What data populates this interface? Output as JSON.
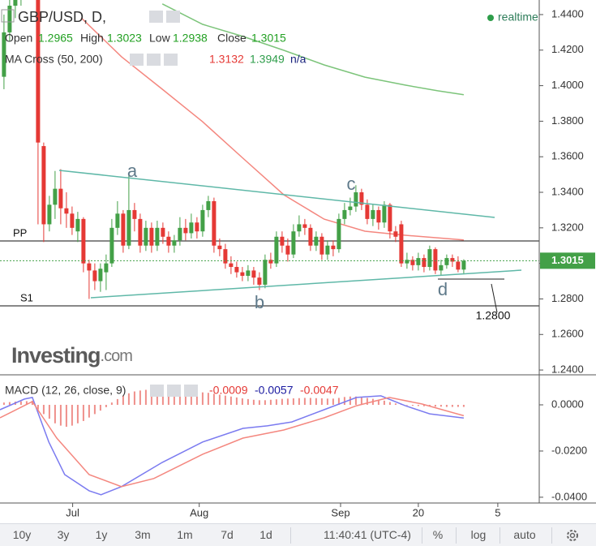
{
  "chart_data": [
    {
      "type": "candlestick",
      "symbol": "GBP/USD, D,",
      "status": "realtime",
      "ohlc_labels": [
        "Open",
        "High",
        "Low",
        "Close"
      ],
      "up_color": "#43a047",
      "down_color": "#e53935",
      "open": [
        1.405,
        1.43,
        1.445,
        1.45,
        1.465,
        1.475,
        1.488,
        1.366,
        1.322,
        1.333,
        1.342,
        1.331,
        1.328,
        1.318,
        1.325,
        1.3,
        1.296,
        1.29,
        1.295,
        1.3,
        1.32,
        1.328,
        1.31,
        1.33,
        1.325,
        1.31,
        1.32,
        1.31,
        1.32,
        1.315,
        1.31,
        1.313,
        1.32,
        1.317,
        1.323,
        1.318,
        1.33,
        1.335,
        1.31,
        1.308,
        1.3,
        1.298,
        1.295,
        1.293,
        1.296,
        1.292,
        1.288,
        1.302,
        1.3,
        1.315,
        1.31,
        1.305,
        1.318,
        1.322,
        1.32,
        1.31,
        1.315,
        1.305,
        1.31,
        1.308,
        1.325,
        1.33,
        1.332,
        1.34,
        1.333,
        1.325,
        1.33,
        1.323,
        1.333,
        1.318,
        1.322,
        1.3,
        1.302,
        1.299,
        1.303,
        1.298,
        1.308,
        1.296,
        1.299,
        1.303,
        1.301,
        1.2965
      ],
      "high": [
        1.44,
        1.452,
        1.46,
        1.472,
        1.48,
        1.502,
        1.502,
        1.368,
        1.338,
        1.352,
        1.353,
        1.34,
        1.332,
        1.329,
        1.326,
        1.302,
        1.3,
        1.3,
        1.305,
        1.325,
        1.335,
        1.33,
        1.35,
        1.334,
        1.328,
        1.324,
        1.323,
        1.324,
        1.323,
        1.318,
        1.316,
        1.326,
        1.325,
        1.328,
        1.326,
        1.333,
        1.338,
        1.337,
        1.314,
        1.311,
        1.304,
        1.301,
        1.298,
        1.299,
        1.298,
        1.295,
        1.305,
        1.306,
        1.318,
        1.318,
        1.314,
        1.322,
        1.327,
        1.325,
        1.322,
        1.318,
        1.317,
        1.313,
        1.313,
        1.328,
        1.334,
        1.337,
        1.344,
        1.342,
        1.336,
        1.333,
        1.332,
        1.335,
        1.334,
        1.321,
        1.324,
        1.306,
        1.304,
        1.306,
        1.305,
        1.31,
        1.309,
        1.302,
        1.305,
        1.305,
        1.304,
        1.3023
      ],
      "low": [
        1.398,
        1.425,
        1.438,
        1.445,
        1.458,
        1.47,
        1.322,
        1.312,
        1.318,
        1.325,
        1.322,
        1.32,
        1.316,
        1.312,
        1.295,
        1.28,
        1.285,
        1.284,
        1.285,
        1.298,
        1.316,
        1.306,
        1.308,
        1.318,
        1.306,
        1.307,
        1.306,
        1.307,
        1.311,
        1.306,
        1.306,
        1.31,
        1.313,
        1.314,
        1.314,
        1.315,
        1.326,
        1.306,
        1.304,
        1.297,
        1.294,
        1.292,
        1.29,
        1.29,
        1.288,
        1.285,
        1.286,
        1.297,
        1.298,
        1.306,
        1.301,
        1.303,
        1.315,
        1.316,
        1.307,
        1.307,
        1.302,
        1.302,
        1.304,
        1.306,
        1.322,
        1.327,
        1.329,
        1.33,
        1.322,
        1.321,
        1.319,
        1.32,
        1.314,
        1.312,
        1.298,
        1.297,
        1.296,
        1.296,
        1.295,
        1.296,
        1.294,
        1.293,
        1.297,
        1.298,
        1.295,
        1.2938
      ],
      "close": [
        1.43,
        1.445,
        1.45,
        1.465,
        1.475,
        1.488,
        1.368,
        1.322,
        1.333,
        1.342,
        1.331,
        1.328,
        1.32,
        1.325,
        1.3,
        1.296,
        1.29,
        1.297,
        1.3,
        1.32,
        1.328,
        1.31,
        1.33,
        1.325,
        1.31,
        1.32,
        1.31,
        1.32,
        1.315,
        1.31,
        1.313,
        1.32,
        1.317,
        1.323,
        1.318,
        1.33,
        1.335,
        1.31,
        1.308,
        1.3,
        1.298,
        1.295,
        1.293,
        1.296,
        1.292,
        1.288,
        1.302,
        1.3,
        1.315,
        1.31,
        1.305,
        1.318,
        1.322,
        1.32,
        1.31,
        1.315,
        1.305,
        1.31,
        1.308,
        1.325,
        1.33,
        1.332,
        1.34,
        1.333,
        1.325,
        1.33,
        1.323,
        1.333,
        1.318,
        1.315,
        1.3,
        1.302,
        1.299,
        1.303,
        1.298,
        1.308,
        1.296,
        1.299,
        1.303,
        1.301,
        1.2965,
        1.3015
      ],
      "moving_averages": {
        "label": "MA Cross (50, 200)",
        "status": "n/a",
        "series": [
          {
            "color": "#f4877f",
            "x": [
              13.6,
              20.7,
              27.9,
              35,
              42.1,
              49.3,
              56.4,
              63.6,
              70.7,
              81
            ],
            "values": [
              1.4382,
              1.4163,
              1.398,
              1.3797,
              1.3592,
              1.3386,
              1.3249,
              1.3181,
              1.3158,
              1.3132
            ]
          },
          {
            "color": "#7cc47a",
            "x": [
              27.9,
              35,
              42.1,
              49.3,
              56.4,
              63.6,
              70.7,
              76.4,
              81
            ],
            "values": [
              1.446,
              1.4345,
              1.4277,
              1.4199,
              1.4117,
              1.4048,
              1.4003,
              1.3971,
              1.3949
            ]
          }
        ]
      },
      "price_lines": [
        {
          "label": "PP",
          "value": 1.3126
        },
        {
          "label": "S1",
          "value": 1.2761
        }
      ],
      "annotations": [
        "a",
        "b",
        "c",
        "d",
        "1.2800"
      ],
      "logo": "Investing",
      "logo_suffix": ".com",
      "xlim": [
        -0.7,
        94.3
      ],
      "xticks": [
        {
          "value": 12.1,
          "label": "Jul"
        },
        {
          "value": 34.4,
          "label": "Aug"
        },
        {
          "value": 59.3,
          "label": "Sep"
        },
        {
          "value": 73,
          "label": "20"
        },
        {
          "value": 87,
          "label": "5"
        }
      ],
      "ylim": [
        1.2373,
        1.4482
      ],
      "yticks": [
        {
          "value": 1.44,
          "label": "1.4400"
        },
        {
          "value": 1.42,
          "label": "1.4200"
        },
        {
          "value": 1.4,
          "label": "1.4000"
        },
        {
          "value": 1.38,
          "label": "1.3800"
        },
        {
          "value": 1.36,
          "label": "1.3600"
        },
        {
          "value": 1.34,
          "label": "1.3400"
        },
        {
          "value": 1.32,
          "label": "1.3200"
        },
        {
          "value": 1.3,
          "label": "1.3000"
        },
        {
          "value": 1.28,
          "label": "1.2800"
        },
        {
          "value": 1.26,
          "label": "1.2600"
        },
        {
          "value": 1.24,
          "label": "1.2400"
        }
      ]
    },
    {
      "type": "macd",
      "label": "MACD (12, 26, close, 9)",
      "histogram": {
        "color": "#ef8f8a",
        "values": [
          0.001,
          0.0012,
          0.0014,
          0.0015,
          0.0016,
          0.0018,
          -0.002,
          -0.004,
          -0.006,
          -0.008,
          -0.009,
          -0.0095,
          -0.009,
          -0.008,
          -0.007,
          -0.0055,
          -0.004,
          -0.0025,
          -0.001,
          0.001,
          0.0025,
          0.004,
          0.005,
          0.0058,
          0.0062,
          0.0065,
          0.0066,
          0.0066,
          0.0064,
          0.0062,
          0.006,
          0.0058,
          0.0056,
          0.0055,
          0.0055,
          0.0054,
          0.0052,
          0.0048,
          0.0044,
          0.004,
          0.0036,
          0.0032,
          0.0028,
          0.0025,
          0.0022,
          0.002,
          0.002,
          0.0022,
          0.0024,
          0.0026,
          0.0027,
          0.0028,
          0.0029,
          0.003,
          0.003,
          0.0029,
          0.0028,
          0.0027,
          0.0027,
          0.003,
          0.0034,
          0.0036,
          0.0036,
          0.0034,
          0.003,
          0.0026,
          0.0022,
          0.0018,
          0.0012,
          0.0006,
          0.0002,
          -0.0002,
          -0.0004,
          -0.0005,
          -0.0006,
          -0.0007,
          -0.0008,
          -0.0008,
          -0.0009,
          -0.0009,
          -0.0009,
          -0.0009
        ]
      },
      "series": [
        {
          "color": "#7b7bf0",
          "x": [
            -0.7,
            3.6,
            5,
            7.9,
            10.7,
            15,
            17.1,
            20.7,
            27.9,
            35,
            42.1,
            46.4,
            50.7,
            56.4,
            62.1,
            66.4,
            70.7,
            75,
            81
          ],
          "values": [
            -0.0021,
            0.0025,
            0.0032,
            -0.0161,
            -0.0302,
            -0.0372,
            -0.0389,
            -0.0354,
            -0.0249,
            -0.0161,
            -0.0102,
            -0.0091,
            -0.0074,
            -0.0021,
            0.0032,
            0.0039,
            -0.0004,
            -0.0039,
            -0.0057
          ]
        },
        {
          "color": "#f4877f",
          "x": [
            -0.7,
            5,
            9.3,
            15,
            20.7,
            26.4,
            35,
            42.1,
            49.3,
            56.4,
            62.1,
            67.9,
            73.6,
            81
          ],
          "values": [
            -0.0056,
            0.0014,
            -0.0144,
            -0.0302,
            -0.0354,
            -0.0319,
            -0.0214,
            -0.0144,
            -0.0109,
            -0.0056,
            -0.0004,
            0.0032,
            0.0004,
            -0.0047
          ]
        }
      ],
      "ylim": [
        -0.0425,
        0.013
      ],
      "yticks": [
        {
          "value": 0,
          "label": "0.0000"
        },
        {
          "value": -0.02,
          "label": "-0.0200"
        },
        {
          "value": -0.04,
          "label": "-0.0400"
        }
      ]
    }
  ],
  "toolbar": {
    "ranges": [
      "10y",
      "3y",
      "1y",
      "3m",
      "1m",
      "7d",
      "1d"
    ],
    "clock": "11:40:41 (UTC-4)",
    "options": [
      "%",
      "log",
      "auto"
    ]
  }
}
